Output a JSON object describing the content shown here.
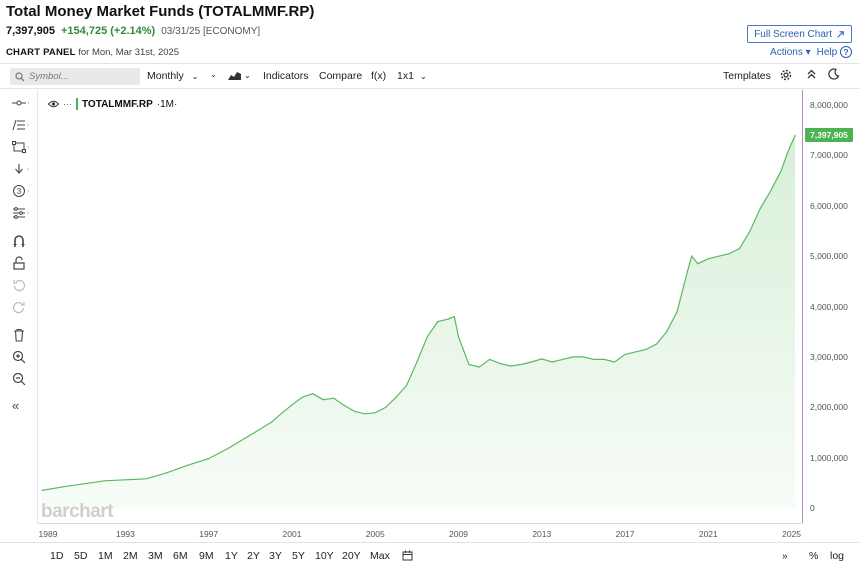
{
  "header": {
    "title": "Total Money Market Funds (TOTALMMF.RP)",
    "last": "7,397,905",
    "change": "+154,725 (+2.14%)",
    "meta": "03/31/25 [ECONOMY]",
    "panel_label": "CHART PANEL",
    "panel_date": "for Mon, Mar 31st, 2025",
    "fullscreen_label": "Full Screen Chart",
    "actions_label": "Actions",
    "help_label": "Help"
  },
  "toolbar": {
    "symbol_placeholder": "Symbol...",
    "period": "Monthly",
    "indicators": "Indicators",
    "compare": "Compare",
    "fx": "f(x)",
    "layout": "1x1",
    "templates": "Templates"
  },
  "legend": {
    "symbol": "TOTALMMF.RP",
    "interval": "·1M·"
  },
  "watermark": "barchart",
  "bottom": {
    "ranges": [
      "1D",
      "5D",
      "1M",
      "2M",
      "3M",
      "6M",
      "9M",
      "1Y",
      "2Y",
      "3Y",
      "5Y",
      "10Y",
      "20Y",
      "Max"
    ],
    "percent": "%",
    "log": "log"
  },
  "colors": {
    "line": "#5cb860",
    "fill": "#e8f6e8",
    "badge": "#4bb34f",
    "accent": "#2b5fb3"
  },
  "chart_data": {
    "type": "area",
    "series": [
      {
        "name": "TOTALMMF.RP",
        "x": [
          1989,
          1990,
          1991,
          1992,
          1993,
          1994,
          1995,
          1996,
          1997,
          1998,
          1999,
          2000,
          2000.5,
          2001,
          2001.5,
          2002,
          2002.5,
          2003,
          2003.5,
          2004,
          2004.5,
          2005,
          2005.5,
          2006,
          2006.5,
          2007,
          2007.5,
          2008,
          2008.5,
          2008.8,
          2009,
          2009.5,
          2010,
          2010.5,
          2011,
          2011.5,
          2012,
          2012.5,
          2013,
          2013.5,
          2014,
          2014.5,
          2015,
          2015.5,
          2016,
          2016.5,
          2017,
          2017.5,
          2018,
          2018.5,
          2019,
          2019.5,
          2020,
          2020.2,
          2020.5,
          2021,
          2021.5,
          2022,
          2022.5,
          2023,
          2023.5,
          2024,
          2024.5,
          2024.8,
          2025.17
        ],
        "y": [
          350000,
          420000,
          480000,
          540000,
          560000,
          580000,
          700000,
          850000,
          980000,
          1200000,
          1450000,
          1700000,
          1880000,
          2050000,
          2200000,
          2270000,
          2150000,
          2180000,
          2040000,
          1920000,
          1870000,
          1890000,
          2000000,
          2200000,
          2430000,
          2900000,
          3400000,
          3700000,
          3750000,
          3800000,
          3400000,
          2850000,
          2800000,
          2950000,
          2870000,
          2820000,
          2850000,
          2900000,
          2960000,
          2900000,
          2950000,
          3000000,
          3000000,
          2950000,
          2950000,
          2900000,
          3050000,
          3100000,
          3150000,
          3250000,
          3500000,
          3900000,
          4700000,
          5000000,
          4850000,
          4950000,
          5000000,
          5050000,
          5150000,
          5500000,
          5950000,
          6300000,
          6700000,
          7050000,
          7397905
        ]
      }
    ],
    "xlim": [
      1988.8,
      2025.5
    ],
    "ylim": [
      0,
      8300000
    ],
    "y_ticks": [
      0,
      1000000,
      2000000,
      3000000,
      4000000,
      5000000,
      6000000,
      7000000,
      8000000
    ],
    "y_tick_labels": [
      "0",
      "1,000,000",
      "2,000,000",
      "3,000,000",
      "4,000,000",
      "5,000,000",
      "6,000,000",
      "7,000,000",
      "8,000,000"
    ],
    "x_ticks": [
      1989,
      1993,
      1997,
      2001,
      2005,
      2009,
      2013,
      2017,
      2021,
      2025
    ],
    "x_tick_labels": [
      "1989",
      "1993",
      "1997",
      "2001",
      "2005",
      "2009",
      "2013",
      "2017",
      "2021",
      "2025"
    ],
    "last_value": 7397905,
    "last_label": "7,397,905",
    "grid": false
  }
}
